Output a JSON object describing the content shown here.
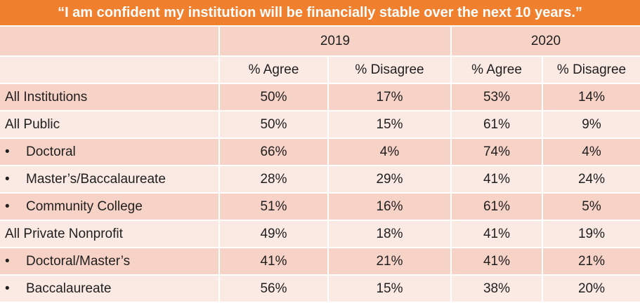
{
  "title": "“I am confident my institution will be financially stable over the next 10 years.”",
  "colors": {
    "title_bg": "#f07f2e",
    "row_dark": "#f7d2c6",
    "row_light": "#fbe9e3"
  },
  "chart_data": {
    "type": "table",
    "years": [
      "2019",
      "2020"
    ],
    "columns": [
      "% Agree",
      "% Disagree",
      "% Agree",
      "% Disagree"
    ],
    "rows": [
      {
        "label": "All Institutions",
        "bullet": "",
        "values": [
          "50%",
          "17%",
          "53%",
          "14%"
        ]
      },
      {
        "label": "All Public",
        "bullet": "",
        "values": [
          "50%",
          "15%",
          "61%",
          "9%"
        ]
      },
      {
        "label": "Doctoral",
        "bullet": "•",
        "values": [
          "66%",
          "4%",
          "74%",
          "4%"
        ]
      },
      {
        "label": "Master’s/Baccalaureate",
        "bullet": "•",
        "values": [
          "28%",
          "29%",
          "41%",
          "24%"
        ]
      },
      {
        "label": "Community College",
        "bullet": "•",
        "values": [
          "51%",
          "16%",
          "61%",
          "5%"
        ]
      },
      {
        "label": "All Private Nonprofit",
        "bullet": "",
        "values": [
          "49%",
          "18%",
          "41%",
          "19%"
        ]
      },
      {
        "label": "Doctoral/Master’s",
        "bullet": "•",
        "values": [
          "41%",
          "21%",
          "41%",
          "21%"
        ]
      },
      {
        "label": "Baccalaureate",
        "bullet": "•",
        "values": [
          "56%",
          "15%",
          "38%",
          "20%"
        ]
      }
    ]
  }
}
